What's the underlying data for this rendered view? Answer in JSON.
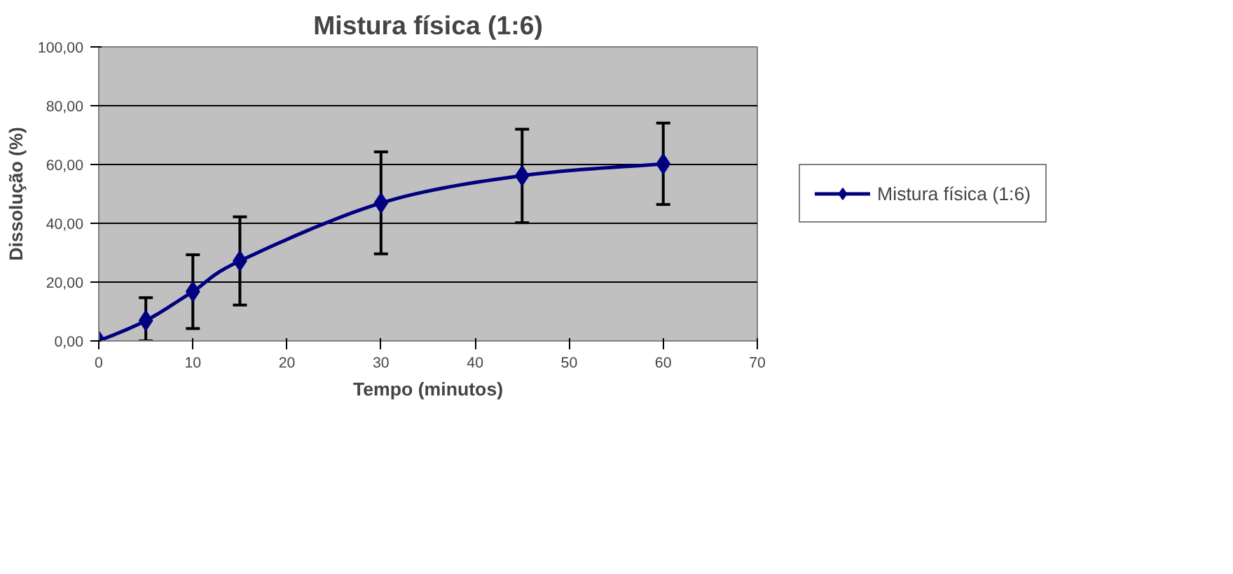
{
  "chart_data": {
    "type": "line",
    "title": "Mistura física (1:6)",
    "xlabel": "Tempo (minutos)",
    "ylabel": "Dissolução (%)",
    "x": [
      0,
      5,
      10,
      15,
      30,
      45,
      60
    ],
    "series": [
      {
        "name": "Mistura física (1:6)",
        "color": "#000080",
        "values": [
          0,
          6.9,
          16.8,
          27.2,
          46.9,
          56.2,
          60.2
        ],
        "errors": [
          null,
          [
            0,
            14.7
          ],
          [
            4.2,
            29.3
          ],
          [
            12.2,
            42.2
          ],
          [
            29.6,
            64.3
          ],
          [
            40.2,
            72.0
          ],
          [
            46.4,
            74.1
          ]
        ]
      }
    ],
    "xlim": [
      0,
      70
    ],
    "xticks": [
      0,
      10,
      20,
      30,
      40,
      50,
      60,
      70
    ],
    "ylim": [
      0,
      100
    ],
    "yticks": [
      {
        "value": 0,
        "label": "0,00"
      },
      {
        "value": 20,
        "label": "20,00"
      },
      {
        "value": 40,
        "label": "40,00"
      },
      {
        "value": 60,
        "label": "60,00"
      },
      {
        "value": 80,
        "label": "80,00"
      },
      {
        "value": 100,
        "label": "100,00"
      }
    ],
    "grid": "y",
    "legend": "right",
    "marker": "diamond",
    "line_style": "solid"
  }
}
